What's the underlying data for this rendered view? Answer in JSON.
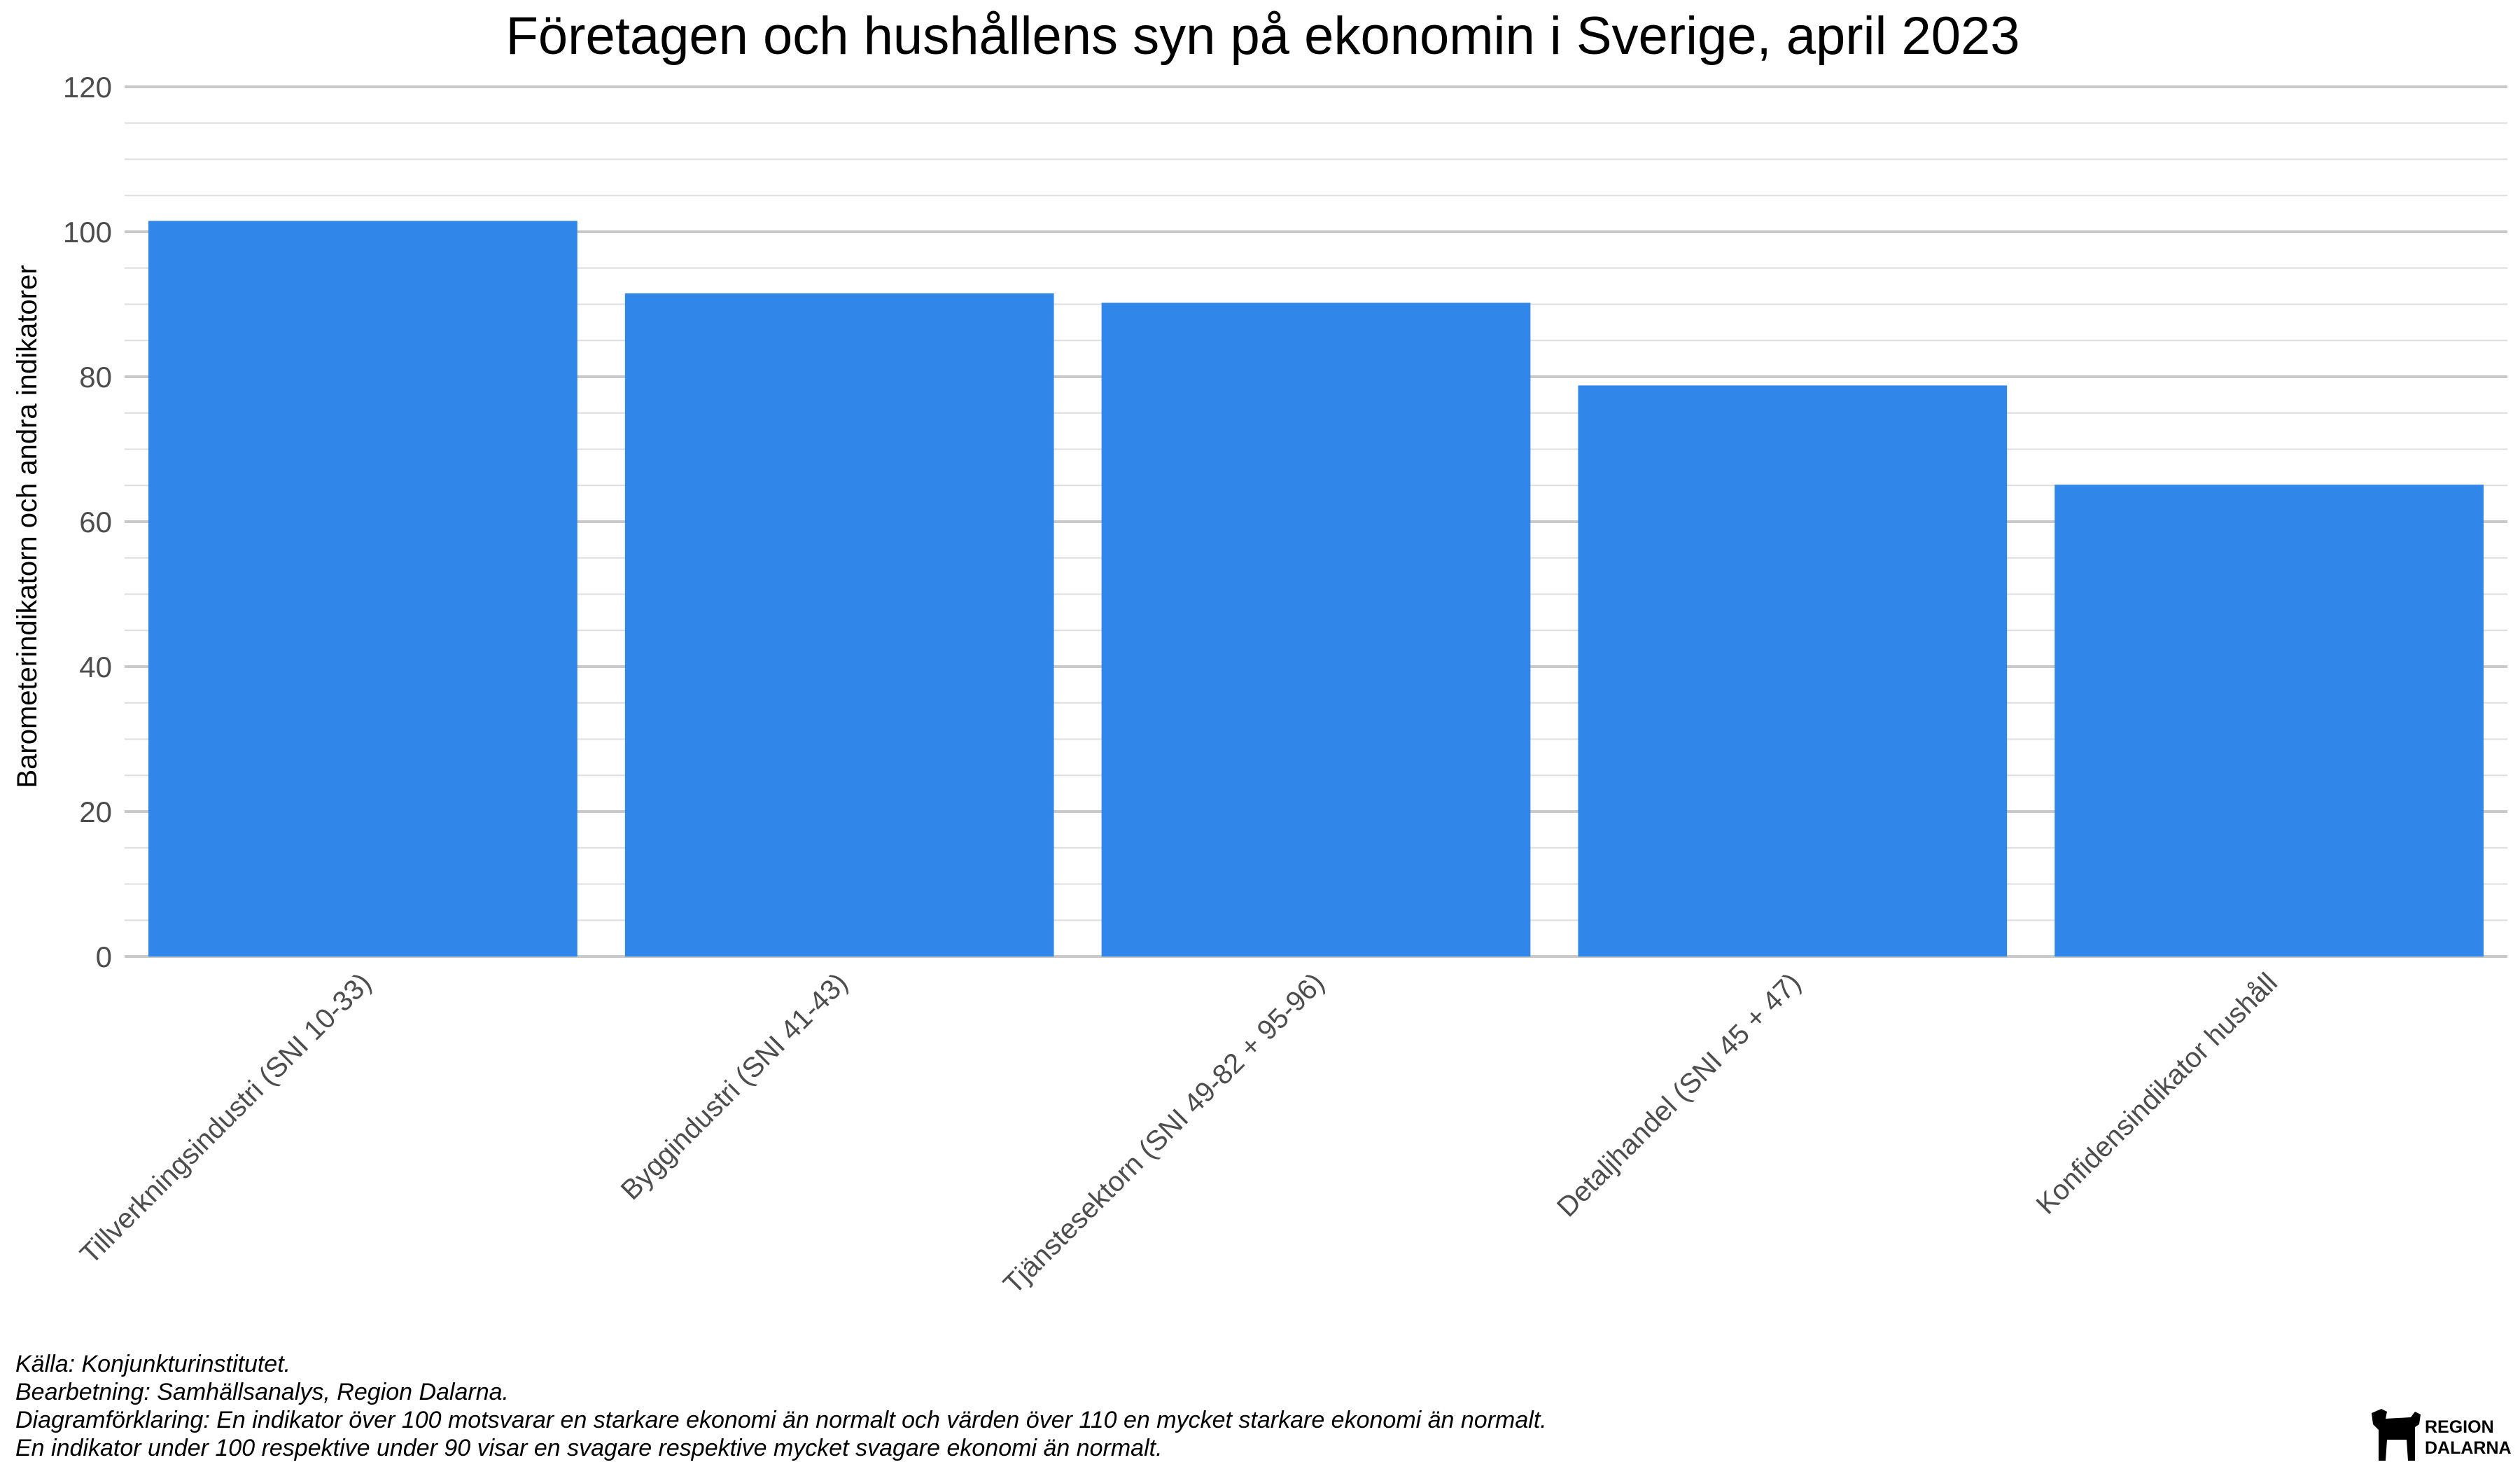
{
  "chart_data": {
    "type": "bar",
    "title": "Företagen och hushållens syn på ekonomin i Sverige, april 2023",
    "xlabel": "",
    "ylabel": "Barometerindikatorn och andra indikatorer",
    "categories": [
      "Tillverkningsindustri (SNI 10-33)",
      "Byggindustri (SNI 41-43)",
      "Tjänstesektorn (SNI 49-82 + 95-96)",
      "Detaljhandel (SNI 45 + 47)",
      "Konfidensindikator hushåll"
    ],
    "values": [
      101.5,
      91.5,
      90.2,
      78.8,
      65.1
    ],
    "ylim": [
      0,
      120
    ],
    "yticks": [
      0,
      20,
      40,
      60,
      80,
      100,
      120
    ],
    "grid": true,
    "bar_color": "#3186E9",
    "legend": "none"
  },
  "captions": {
    "source": "Källa: Konjunkturinstitutet.",
    "processing": "Bearbetning: Samhällsanalys, Region Dalarna.",
    "explanation_1": "Diagramförklaring: En indikator över 100 motsvarar en starkare ekonomi än normalt och värden över 110 en mycket starkare ekonomi än normalt.",
    "explanation_2": "En indikator under 100 respektive under 90 visar en svagare respektive mycket svagare ekonomi än normalt."
  },
  "logo": {
    "icon": "dala-horse-icon",
    "line1": "REGION",
    "line2": "DALARNA"
  }
}
